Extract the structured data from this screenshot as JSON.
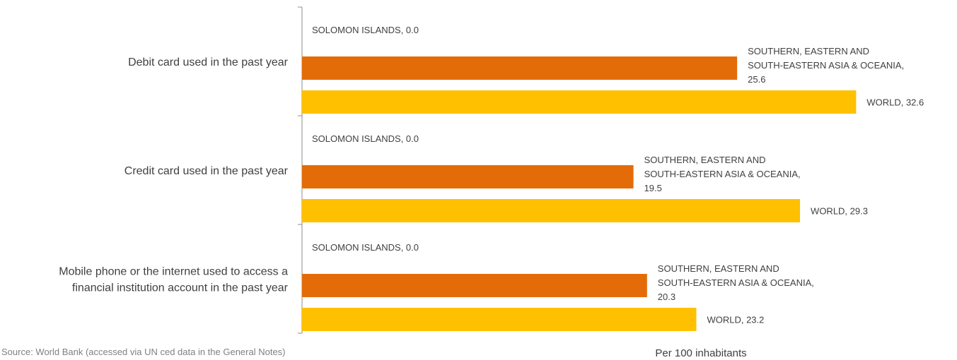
{
  "chart_data": {
    "type": "bar",
    "orientation": "horizontal",
    "categories": [
      "Debit card used in the past year",
      "Credit card used in the past year",
      "Mobile phone or the internet used to access a financial institution account in the past year"
    ],
    "category_lines": [
      [
        "Debit card used in the past year"
      ],
      [
        "Credit card used in the past year"
      ],
      [
        "Mobile phone or the internet used to access a",
        "financial institution account in the past year"
      ]
    ],
    "series": [
      {
        "name": "SOLOMON ISLANDS",
        "color": "#2e75b6",
        "values": [
          0.0,
          0.0,
          0.0
        ],
        "labels": [
          [
            "SOLOMON ISLANDS, 0.0"
          ],
          [
            "SOLOMON ISLANDS, 0.0"
          ],
          [
            "SOLOMON ISLANDS, 0.0"
          ]
        ]
      },
      {
        "name": "SOUTHERN, EASTERN AND SOUTH-EASTERN ASIA & OCEANIA",
        "color": "#e36c09",
        "values": [
          25.6,
          19.5,
          20.3
        ],
        "labels": [
          [
            "SOUTHERN, EASTERN AND",
            "SOUTH-EASTERN ASIA & OCEANIA,",
            "25.6"
          ],
          [
            "SOUTHERN, EASTERN AND",
            "SOUTH-EASTERN ASIA & OCEANIA,",
            "19.5"
          ],
          [
            "SOUTHERN, EASTERN AND",
            "SOUTH-EASTERN ASIA & OCEANIA,",
            "20.3"
          ]
        ]
      },
      {
        "name": "WORLD",
        "color": "#ffc000",
        "values": [
          32.6,
          29.3,
          23.2
        ],
        "labels": [
          [
            "WORLD, 32.6"
          ],
          [
            "WORLD, 29.3"
          ],
          [
            "WORLD, 23.2"
          ]
        ]
      }
    ],
    "xlabel": "Per 100 inhabitants",
    "xlim": [
      0,
      34
    ],
    "grid": false,
    "legend": "none"
  },
  "source_text": "Source: World Bank (accessed via UN ced data in the General Notes)"
}
